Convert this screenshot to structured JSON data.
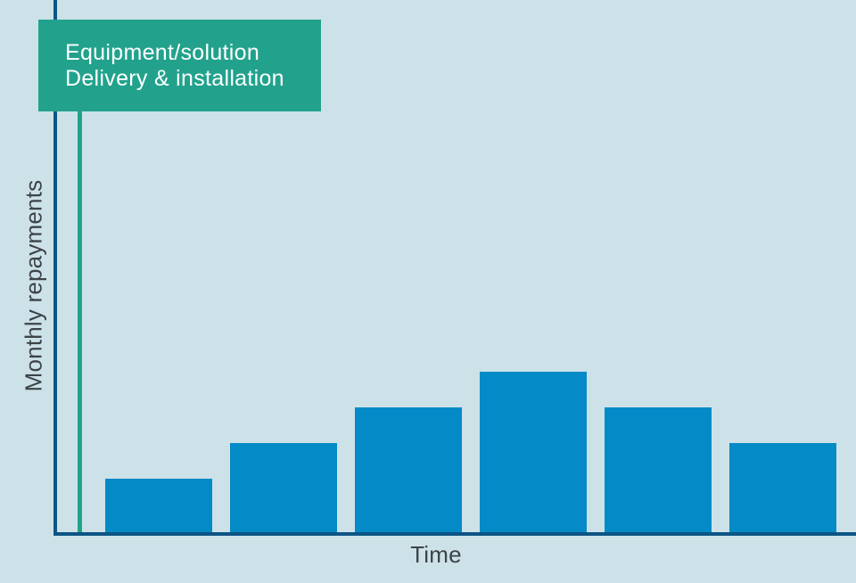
{
  "chart_data": {
    "type": "bar",
    "title": "",
    "xlabel": "Time",
    "ylabel": "Monthly repayments",
    "categories": [
      "",
      "",
      "",
      "",
      "",
      ""
    ],
    "values": [
      60,
      100,
      140,
      180,
      140,
      100
    ],
    "value_note": "relative bar heights; no numeric tick labels or gridlines are shown on either axis",
    "ylim": [
      0,
      190
    ],
    "grid": false,
    "legend": false,
    "annotation": {
      "lines": [
        "Equipment/solution",
        "Delivery & installation"
      ]
    },
    "colors": {
      "background": "#cde2e8",
      "bar": "#048ac6",
      "axis": "#0d5585",
      "accent": "#22a28c",
      "annotationText": "#ffffff",
      "labelText": "#3c4448"
    }
  }
}
